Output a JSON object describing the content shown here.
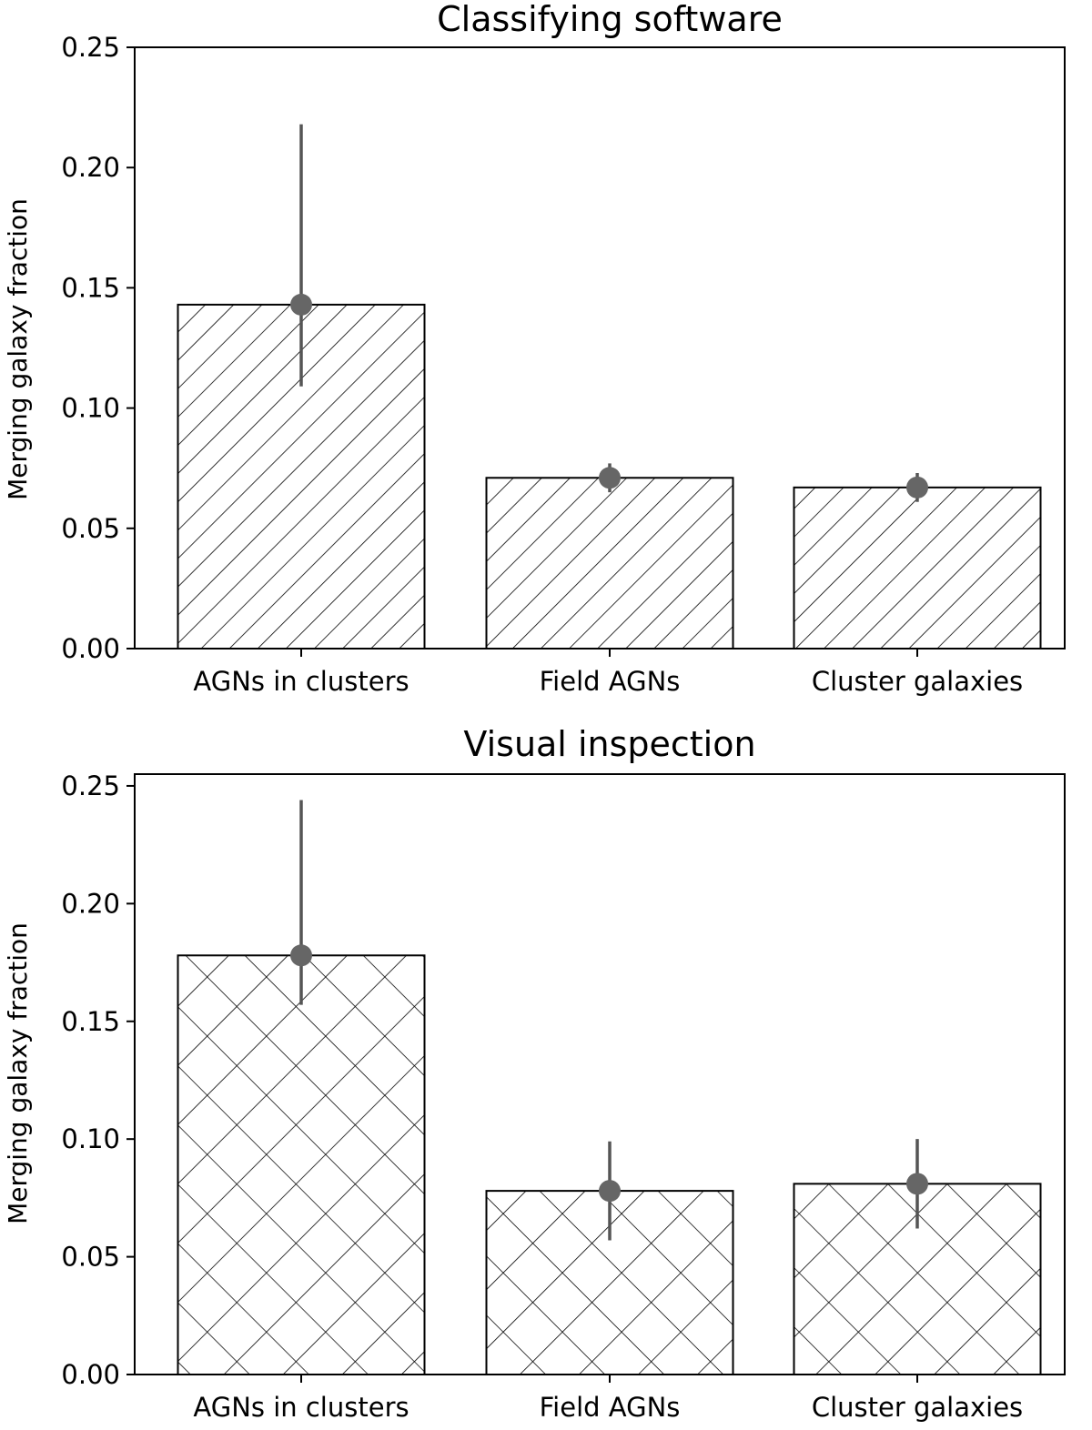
{
  "chart_data": [
    {
      "type": "bar",
      "title": "Classifying software",
      "xlabel": "",
      "ylabel": "Merging galaxy fraction",
      "categories": [
        "AGNs in clusters",
        "Field AGNs",
        "Cluster galaxies"
      ],
      "values": [
        0.143,
        0.071,
        0.067
      ],
      "error_low": [
        0.109,
        0.065,
        0.061
      ],
      "error_high": [
        0.218,
        0.077,
        0.073
      ],
      "ylim": [
        0,
        0.25
      ],
      "yticks": [
        "0.00",
        "0.05",
        "0.10",
        "0.15",
        "0.20",
        "0.25"
      ],
      "hatch": "diagonal",
      "grid": false
    },
    {
      "type": "bar",
      "title": "Visual inspection",
      "xlabel": "",
      "ylabel": "Merging galaxy fraction",
      "categories": [
        "AGNs in clusters",
        "Field AGNs",
        "Cluster galaxies"
      ],
      "values": [
        0.178,
        0.078,
        0.081
      ],
      "error_low": [
        0.157,
        0.057,
        0.062
      ],
      "error_high": [
        0.244,
        0.099,
        0.1
      ],
      "ylim": [
        0,
        0.255
      ],
      "yticks": [
        "0.00",
        "0.05",
        "0.10",
        "0.15",
        "0.20",
        "0.25"
      ],
      "hatch": "crosshatch",
      "grid": false
    }
  ],
  "colors": {
    "bar_fill": "#ffffff",
    "bar_edge": "#000000",
    "marker": "#666666",
    "errorbar": "#555555"
  }
}
